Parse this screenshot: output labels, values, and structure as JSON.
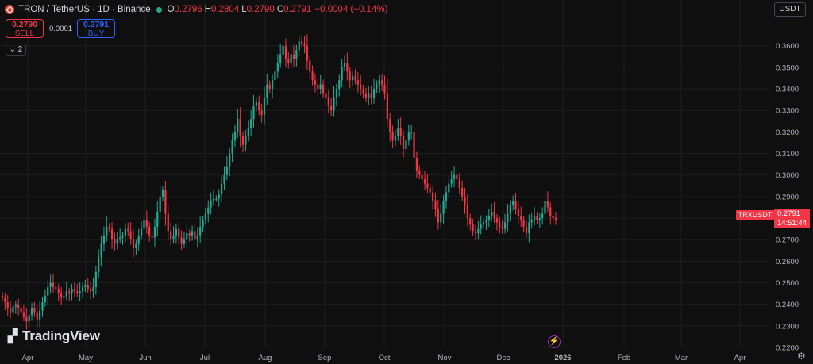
{
  "header": {
    "title": "TRON / TetherUS · 1D · Binance",
    "o_key": "O",
    "o": "0.2796",
    "h_key": "H",
    "h": "0.2804",
    "l_key": "L",
    "l": "0.2790",
    "c_key": "C",
    "c": "0.2791",
    "change": "−0.0004 (−0.14%)"
  },
  "trade": {
    "sell_price": "0.2790",
    "sell_label": "SELL",
    "spread": "0.0001",
    "buy_price": "0.2791",
    "buy_label": "BUY"
  },
  "indicators_count": "2",
  "currency": "USDT",
  "watermark": "TradingView",
  "last_price": {
    "symbol": "TRXUSDT",
    "price": "0.2791",
    "countdown": "14:51:44"
  },
  "colors": {
    "up": "#22ab94",
    "down": "#f23645",
    "background": "#0f0f0f",
    "grid": "#1e1e1e"
  },
  "chart_data": {
    "type": "candlestick",
    "symbol": "TRXUSDT",
    "interval": "1D",
    "ylim": [
      0.22,
      0.368
    ],
    "y_ticks": [
      "0.3600",
      "0.3500",
      "0.3400",
      "0.3300",
      "0.3200",
      "0.3100",
      "0.3000",
      "0.2900",
      "0.2800",
      "0.2700",
      "0.2600",
      "0.2500",
      "0.2400",
      "0.2300",
      "0.2200"
    ],
    "x_ticks": [
      "Apr",
      "May",
      "Jun",
      "Jul",
      "Aug",
      "Sep",
      "Oct",
      "Nov",
      "Dec",
      "2026",
      "Feb",
      "Mar",
      "Apr"
    ],
    "closes": [
      0.243,
      0.241,
      0.238,
      0.236,
      0.239,
      0.24,
      0.238,
      0.236,
      0.234,
      0.232,
      0.235,
      0.238,
      0.236,
      0.233,
      0.237,
      0.241,
      0.244,
      0.248,
      0.25,
      0.248,
      0.247,
      0.245,
      0.243,
      0.244,
      0.246,
      0.245,
      0.247,
      0.246,
      0.245,
      0.246,
      0.248,
      0.249,
      0.247,
      0.246,
      0.248,
      0.255,
      0.262,
      0.268,
      0.272,
      0.276,
      0.275,
      0.27,
      0.268,
      0.27,
      0.271,
      0.272,
      0.275,
      0.274,
      0.27,
      0.266,
      0.268,
      0.272,
      0.275,
      0.279,
      0.276,
      0.272,
      0.271,
      0.276,
      0.283,
      0.29,
      0.293,
      0.282,
      0.274,
      0.27,
      0.272,
      0.275,
      0.271,
      0.268,
      0.27,
      0.273,
      0.272,
      0.274,
      0.27,
      0.272,
      0.276,
      0.279,
      0.282,
      0.285,
      0.288,
      0.289,
      0.289,
      0.291,
      0.296,
      0.3,
      0.304,
      0.31,
      0.316,
      0.32,
      0.326,
      0.318,
      0.314,
      0.318,
      0.322,
      0.326,
      0.332,
      0.334,
      0.33,
      0.328,
      0.336,
      0.342,
      0.34,
      0.344,
      0.348,
      0.352,
      0.356,
      0.36,
      0.354,
      0.352,
      0.356,
      0.354,
      0.358,
      0.362,
      0.361,
      0.36,
      0.353,
      0.348,
      0.344,
      0.342,
      0.34,
      0.342,
      0.338,
      0.336,
      0.332,
      0.33,
      0.336,
      0.34,
      0.344,
      0.35,
      0.352,
      0.348,
      0.344,
      0.346,
      0.344,
      0.342,
      0.34,
      0.338,
      0.336,
      0.338,
      0.336,
      0.34,
      0.342,
      0.344,
      0.342,
      0.338,
      0.326,
      0.32,
      0.316,
      0.318,
      0.322,
      0.318,
      0.312,
      0.316,
      0.32,
      0.32,
      0.308,
      0.302,
      0.3,
      0.298,
      0.296,
      0.294,
      0.292,
      0.288,
      0.284,
      0.278,
      0.282,
      0.288,
      0.292,
      0.296,
      0.298,
      0.3,
      0.298,
      0.294,
      0.29,
      0.286,
      0.28,
      0.277,
      0.274,
      0.273,
      0.275,
      0.277,
      0.278,
      0.279,
      0.281,
      0.283,
      0.28,
      0.278,
      0.276,
      0.275,
      0.278,
      0.282,
      0.286,
      0.288,
      0.284,
      0.281,
      0.279,
      0.276,
      0.273,
      0.278,
      0.279,
      0.281,
      0.279,
      0.28,
      0.282,
      0.288,
      0.285,
      0.281,
      0.28,
      0.2791
    ],
    "last_price": 0.2791
  }
}
